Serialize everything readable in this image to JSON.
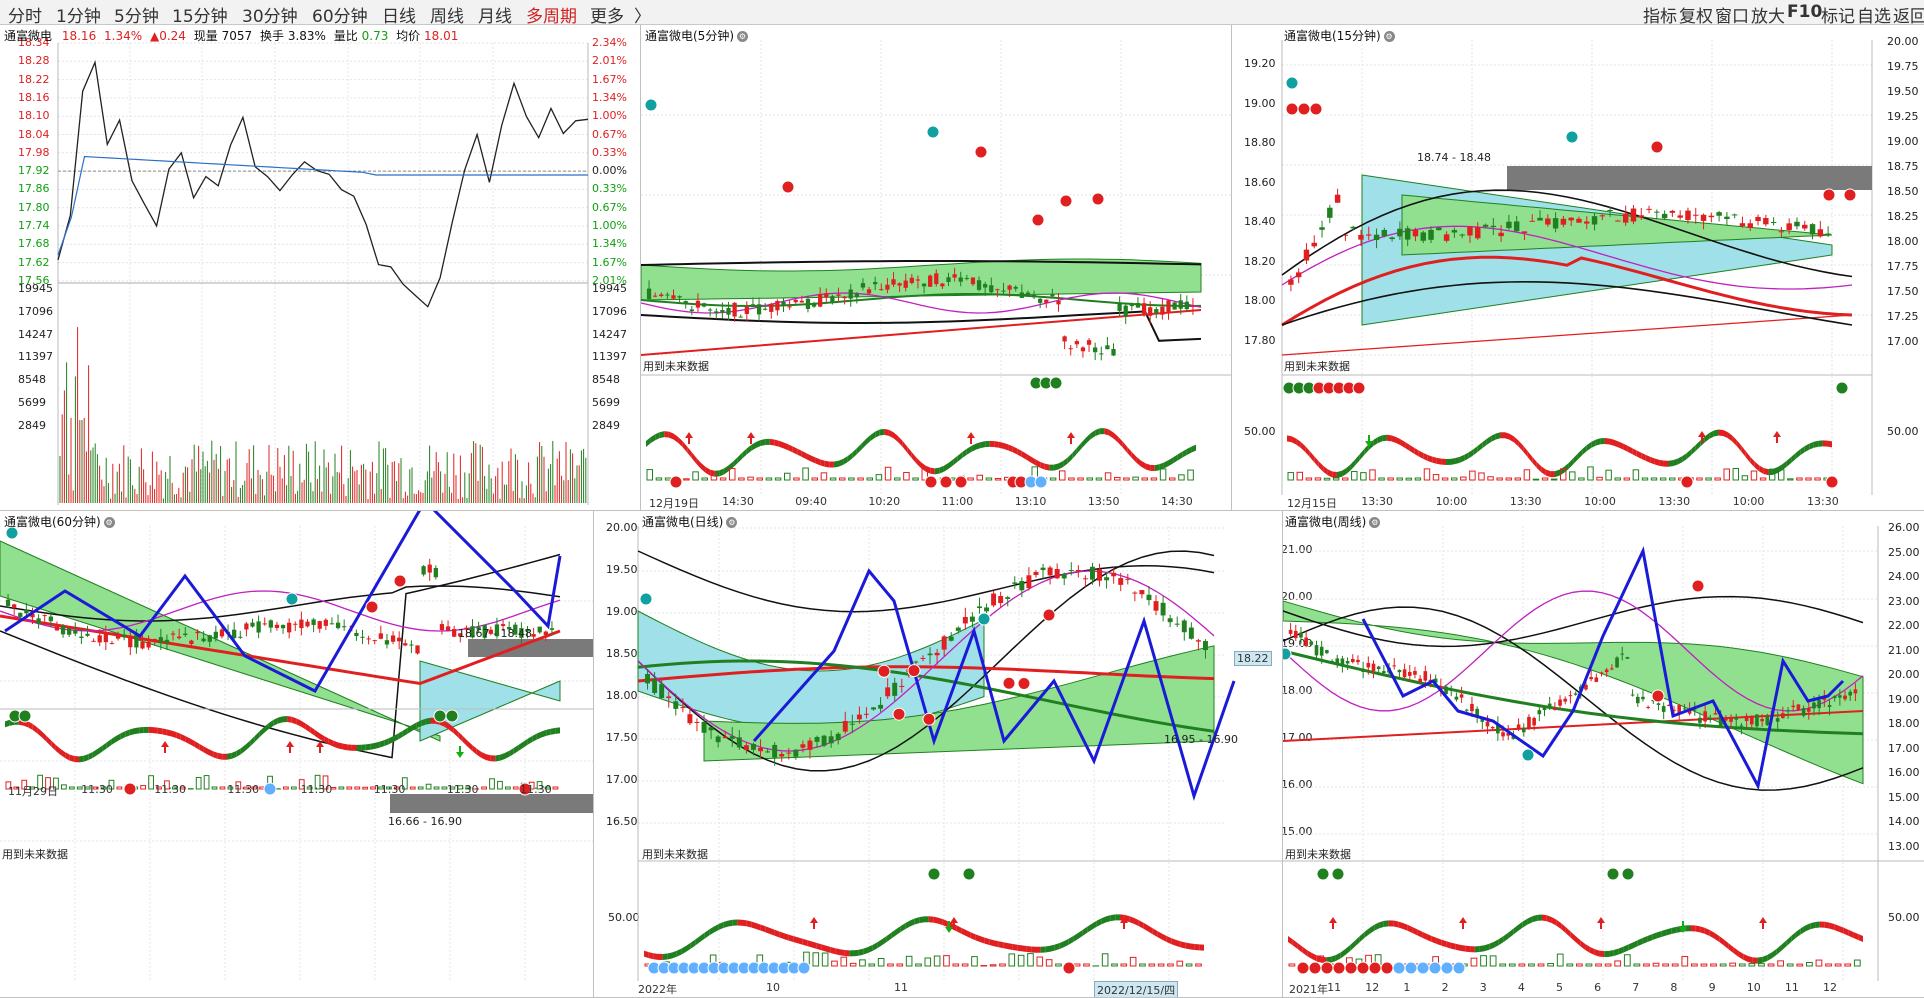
{
  "toolbar": {
    "left": [
      {
        "label": "分时",
        "active": false
      },
      {
        "label": "1分钟",
        "active": false
      },
      {
        "label": "5分钟",
        "active": false
      },
      {
        "label": "15分钟",
        "active": false
      },
      {
        "label": "30分钟",
        "active": false
      },
      {
        "label": "60分钟",
        "active": false
      },
      {
        "label": "日线",
        "active": false
      },
      {
        "label": "周线",
        "active": false
      },
      {
        "label": "月线",
        "active": false
      },
      {
        "label": "多周期",
        "active": true
      },
      {
        "label": "更多",
        "active": false
      }
    ],
    "more_arrow": "〉",
    "right": [
      "指标",
      "复权",
      "窗口",
      "放大",
      "F10",
      "标记",
      "自选",
      "返回"
    ]
  },
  "intraday": {
    "name": "通富微电",
    "price": "18.16",
    "pct": "1.34%",
    "change": "▲0.24",
    "vol_label": "现量",
    "vol": "7057",
    "turnover_label": "换手",
    "turnover": "3.83%",
    "ratio_label": "量比",
    "ratio": "0.73",
    "avg_label": "均价",
    "avg": "18.01",
    "price_ticks": [
      "18.34",
      "18.28",
      "18.22",
      "18.16",
      "18.10",
      "18.04",
      "17.98",
      "17.92",
      "17.86",
      "17.80",
      "17.74",
      "17.68",
      "17.62",
      "17.56"
    ],
    "pct_ticks": [
      "2.34%",
      "2.01%",
      "1.67%",
      "1.34%",
      "1.00%",
      "0.67%",
      "0.33%",
      "0.00%",
      "0.33%",
      "0.67%",
      "1.00%",
      "1.34%",
      "1.67%",
      "2.01%"
    ],
    "vol_ticks": [
      "19945",
      "17096",
      "14247",
      "11397",
      "8548",
      "5699",
      "2849"
    ]
  },
  "p5": {
    "title": "通富微电(5分钟)",
    "future": "用到未来数据",
    "dates": [
      "12月19日",
      "14:30",
      "09:40",
      "10:20",
      "11:00",
      "13:10",
      "13:50",
      "14:30"
    ]
  },
  "p15": {
    "title": "通富微电(15分钟)",
    "future": "用到未来数据",
    "range": "18.74 - 18.48",
    "price_ticks": [
      "19.20",
      "19.00",
      "18.80",
      "18.60",
      "18.40",
      "18.20",
      "18.00",
      "17.80"
    ],
    "right_ticks": [
      "20.00",
      "19.75",
      "19.50",
      "19.25",
      "19.00",
      "18.75",
      "18.50",
      "18.25",
      "18.00",
      "17.75",
      "17.50",
      "17.25",
      "17.00"
    ],
    "osc_tick": "50.00",
    "dates": [
      "12月15日",
      "13:30",
      "10:00",
      "13:30",
      "10:00",
      "13:30",
      "10:00",
      "13:30"
    ]
  },
  "p60": {
    "title": "通富微电(60分钟)",
    "future": "用到未来数据",
    "range_top": "18.67 - 18.48",
    "range_bottom": "16.66 - 16.90",
    "dates": [
      "11月29日",
      "11:30",
      "11:30",
      "11:30",
      "11:30",
      "11:30",
      "11:30",
      "11:30"
    ]
  },
  "pday": {
    "title": "通富微电(日线)",
    "future": "用到未来数据",
    "range": "16.95 - 16.90",
    "price_ticks": [
      "20.00",
      "19.50",
      "19.00",
      "18.50",
      "18.00",
      "17.50",
      "17.00",
      "16.50"
    ],
    "osc_tick": "50.00",
    "current": "18.22",
    "dates": [
      "2022年",
      "10",
      "11"
    ],
    "date_badge": "2022/12/15/四"
  },
  "pweek": {
    "title": "通富微电(周线)",
    "future": "用到未来数据",
    "price_ticks": [
      "21.00",
      "20.00",
      "19.00",
      "18.00",
      "17.00",
      "16.00",
      "15.00"
    ],
    "right_ticks": [
      "26.00",
      "25.00",
      "24.00",
      "23.00",
      "22.00",
      "21.00",
      "20.00",
      "19.00",
      "18.00",
      "17.00",
      "16.00",
      "15.00",
      "14.00",
      "13.00"
    ],
    "osc_tick": "50.00",
    "dates": [
      "2021年",
      "11",
      "12",
      "1",
      "2",
      "3",
      "4",
      "5",
      "6",
      "7",
      "8",
      "9",
      "10",
      "11",
      "12"
    ]
  }
}
